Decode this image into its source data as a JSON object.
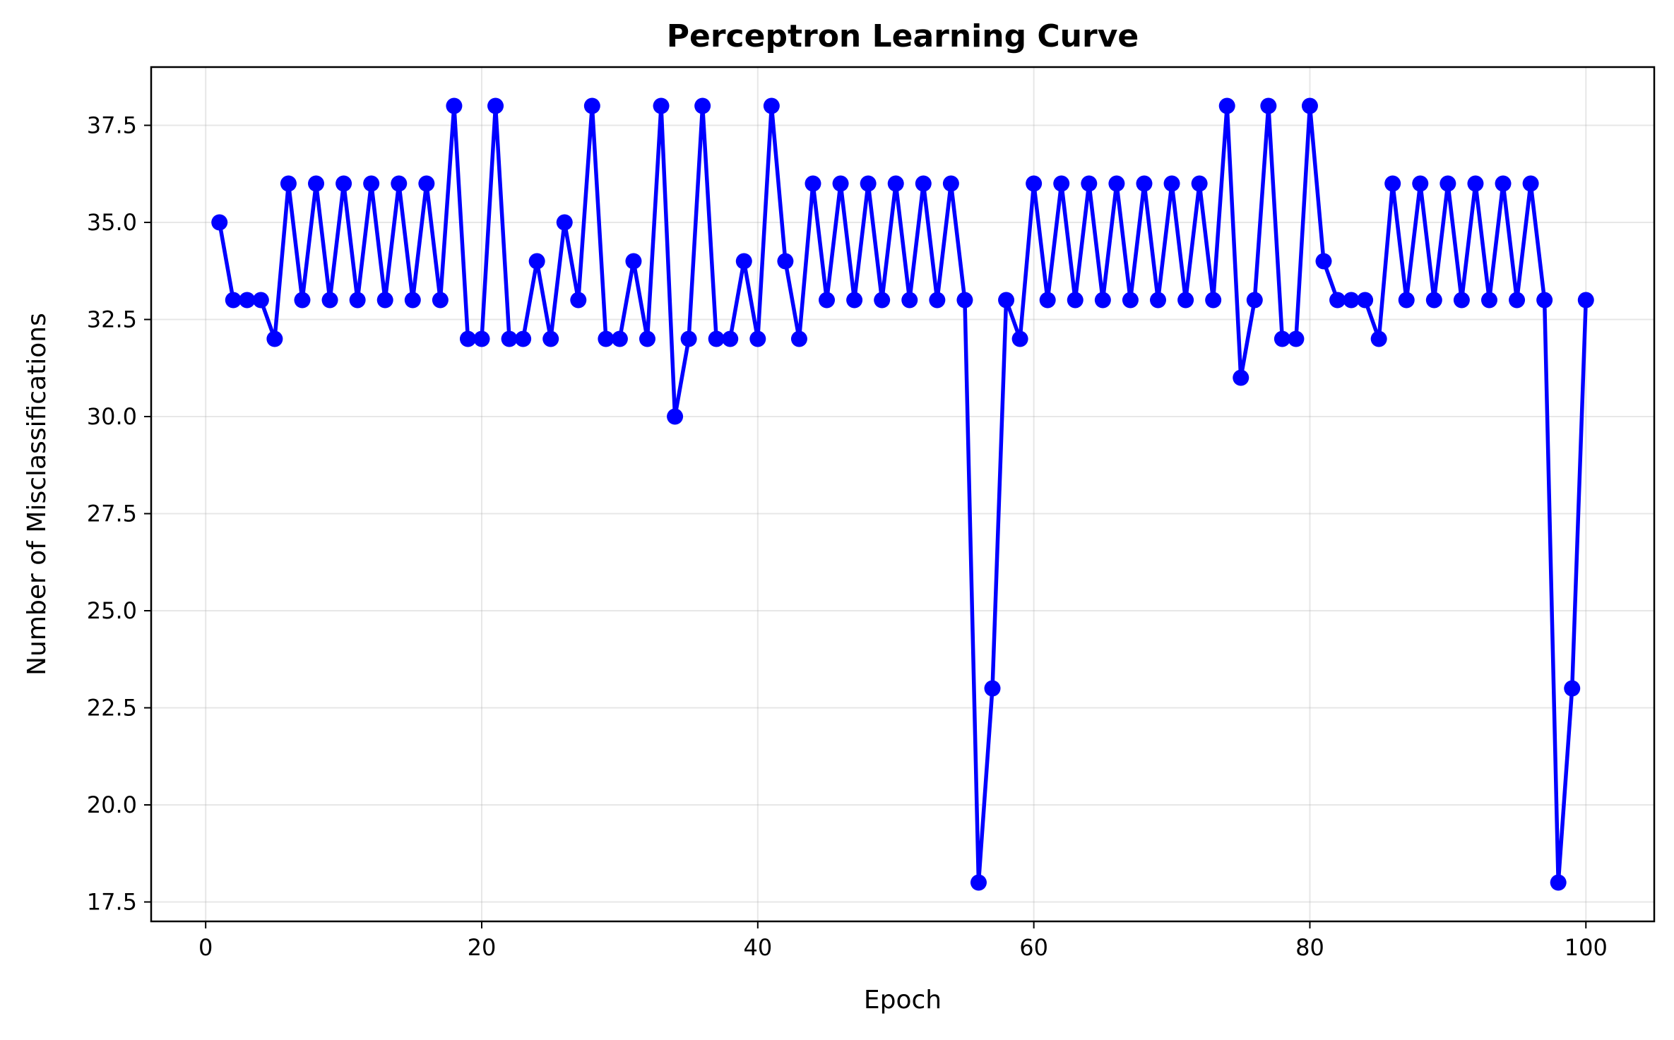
{
  "chart_data": {
    "type": "line",
    "title": "Perceptron Learning Curve",
    "xlabel": "Epoch",
    "ylabel": "Number of Misclassifications",
    "xlim": [
      -3.95,
      104.95
    ],
    "ylim": [
      17.0,
      39.0
    ],
    "xticks": [
      0,
      20,
      40,
      60,
      80,
      100
    ],
    "yticks": [
      17.5,
      20.0,
      22.5,
      25.0,
      27.5,
      30.0,
      32.5,
      35.0,
      37.5
    ],
    "xtick_labels": [
      "0",
      "20",
      "40",
      "60",
      "80",
      "100"
    ],
    "ytick_labels": [
      "17.5",
      "20.0",
      "22.5",
      "25.0",
      "27.5",
      "30.0",
      "32.5",
      "35.0",
      "37.5"
    ],
    "grid": true,
    "legend": "none",
    "series": [
      {
        "color": "#0000ff",
        "marker": "circle",
        "x": [
          1,
          2,
          3,
          4,
          5,
          6,
          7,
          8,
          9,
          10,
          11,
          12,
          13,
          14,
          15,
          16,
          17,
          18,
          19,
          20,
          21,
          22,
          23,
          24,
          25,
          26,
          27,
          28,
          29,
          30,
          31,
          32,
          33,
          34,
          35,
          36,
          37,
          38,
          39,
          40,
          41,
          42,
          43,
          44,
          45,
          46,
          47,
          48,
          49,
          50,
          51,
          52,
          53,
          54,
          55,
          56,
          57,
          58,
          59,
          60,
          61,
          62,
          63,
          64,
          65,
          66,
          67,
          68,
          69,
          70,
          71,
          72,
          73,
          74,
          75,
          76,
          77,
          78,
          79,
          80,
          81,
          82,
          83,
          84,
          85,
          86,
          87,
          88,
          89,
          90,
          91,
          92,
          93,
          94,
          95,
          96,
          97,
          98,
          99,
          100
        ],
        "values": [
          35,
          33,
          33,
          33,
          32,
          36,
          33,
          36,
          33,
          36,
          33,
          36,
          33,
          36,
          33,
          36,
          33,
          38,
          32,
          32,
          38,
          32,
          32,
          34,
          32,
          35,
          33,
          38,
          32,
          32,
          34,
          32,
          38,
          30,
          32,
          38,
          32,
          32,
          34,
          32,
          38,
          34,
          32,
          36,
          33,
          36,
          33,
          36,
          33,
          36,
          33,
          36,
          33,
          36,
          33,
          18,
          23,
          33,
          32,
          36,
          33,
          36,
          33,
          36,
          33,
          36,
          33,
          36,
          33,
          36,
          33,
          36,
          33,
          38,
          31,
          33,
          38,
          32,
          32,
          38,
          34,
          33,
          33,
          33,
          32,
          36,
          33,
          36,
          33,
          36,
          33,
          36,
          33,
          36,
          33,
          36,
          33,
          18,
          23,
          33
        ]
      }
    ]
  }
}
